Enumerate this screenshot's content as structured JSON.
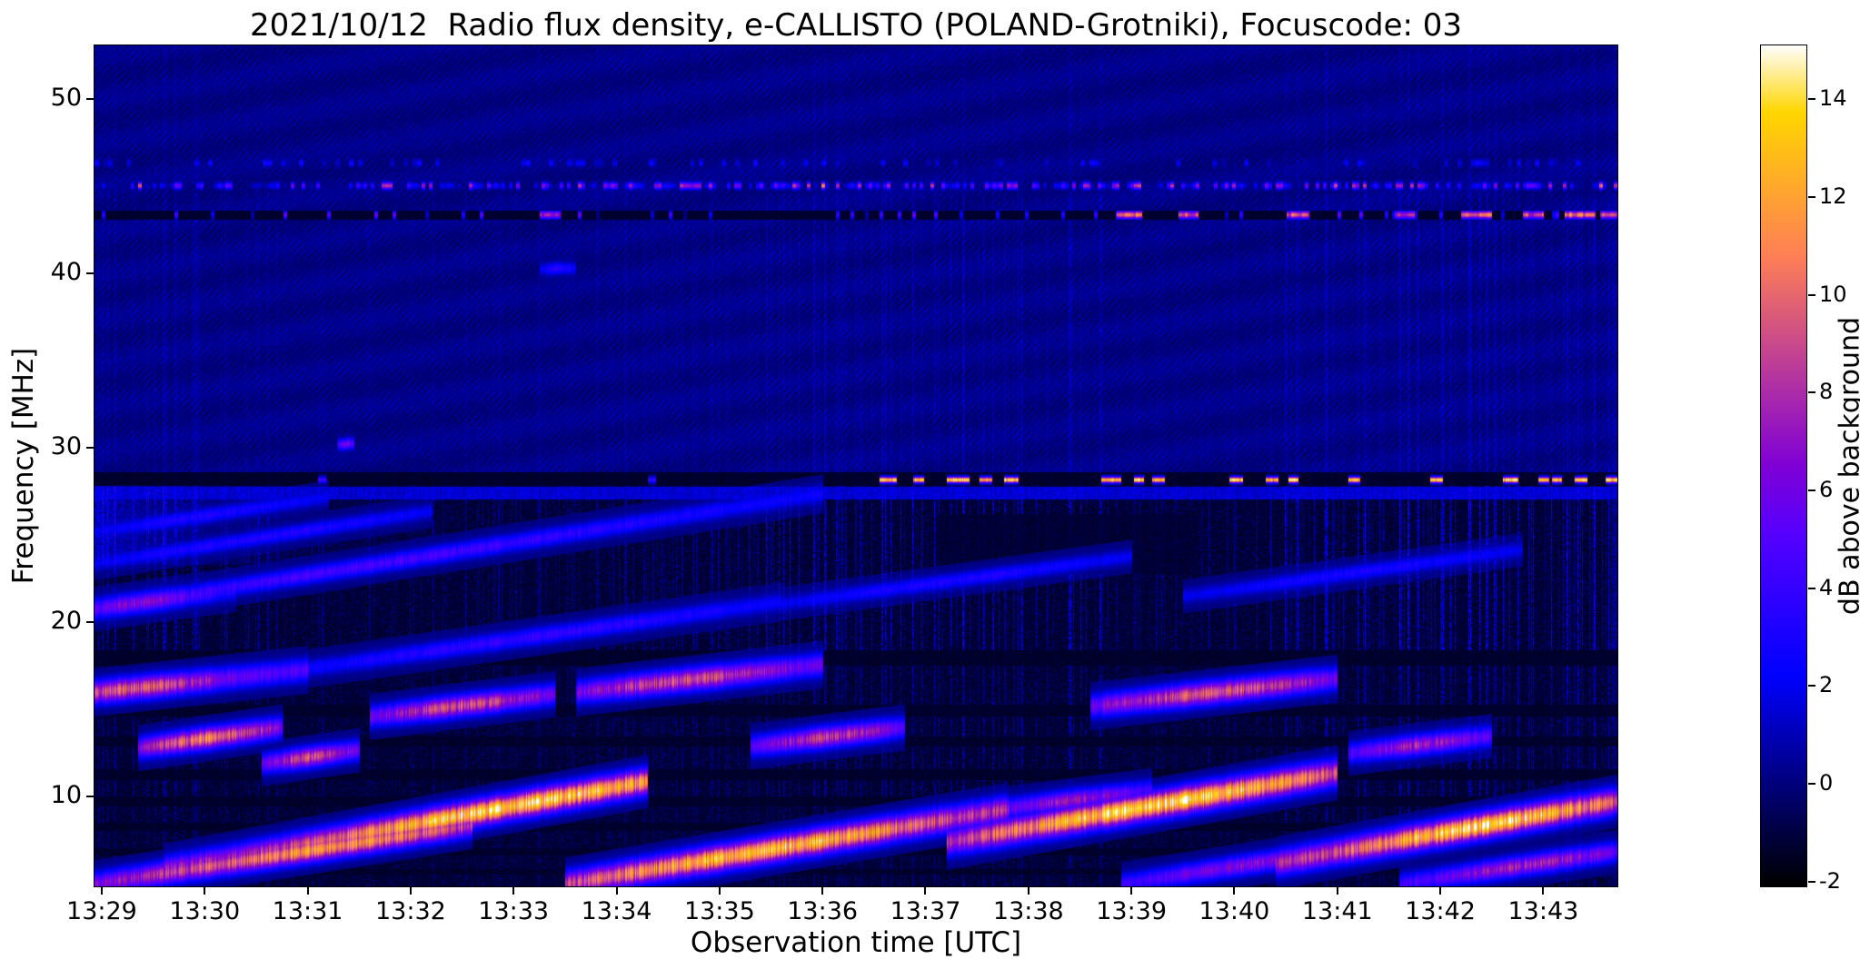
{
  "chart_data": {
    "type": "heatmap",
    "title": "2021/10/12  Radio flux density, e-CALLISTO (POLAND-Grotniki), Focuscode: 03",
    "xlabel": "Observation time [UTC]",
    "ylabel": "Frequency [MHz]",
    "colorbar_label": "dB above background",
    "x_ticks": [
      "13:29",
      "13:30",
      "13:31",
      "13:32",
      "13:33",
      "13:34",
      "13:35",
      "13:36",
      "13:37",
      "13:38",
      "13:39",
      "13:40",
      "13:41",
      "13:42",
      "13:43"
    ],
    "y_ticks": [
      10,
      20,
      30,
      40,
      50
    ],
    "y_range_mhz": [
      4.85,
      53.1
    ],
    "x_range_minutes": [
      -0.07,
      14.72
    ],
    "colorbar_ticks": [
      14,
      12,
      10,
      8,
      6,
      4,
      2,
      0,
      -2
    ],
    "colorbar_range": [
      -2.1,
      15.1
    ],
    "colormap": "gnuplot2",
    "grid": false,
    "features": {
      "background_db_upper": 0.15,
      "background_db_lower": -1.15,
      "dark_bands": [
        [
          17.5,
          18.4
        ],
        [
          14.6,
          15.25
        ],
        [
          12.85,
          13.45
        ],
        [
          10.95,
          11.55
        ],
        [
          9.45,
          10.0
        ],
        [
          8.05,
          8.5
        ],
        [
          6.6,
          7.05
        ],
        [
          5.55,
          5.85
        ]
      ],
      "dark_zone_t": [
        8.1,
        10.6
      ],
      "dark_zone_f": [
        22.8,
        26.2
      ],
      "rfi_rows": {
        "speckle_mhz": 45.05,
        "dark_mhz": 43.38,
        "faint_mhz": 46.35,
        "cb_band": [
          27.85,
          28.6
        ],
        "cb_dash_mhz": 28.17,
        "blue_band": [
          27.05,
          27.8
        ]
      },
      "rfi_43_segments": [
        [
          4.25,
          4.45,
          8
        ],
        [
          9.85,
          10.1,
          10
        ],
        [
          10.45,
          10.65,
          9
        ],
        [
          11.5,
          11.72,
          9.5
        ],
        [
          12.55,
          12.75,
          8.5
        ],
        [
          13.2,
          13.5,
          10
        ],
        [
          13.8,
          14.0,
          9
        ],
        [
          14.2,
          14.5,
          10.5
        ],
        [
          14.55,
          14.72,
          9.5
        ]
      ],
      "cb_dashes": [
        [
          2.1,
          2.18,
          4.5
        ],
        [
          5.3,
          5.38,
          4.0
        ],
        [
          7.55,
          7.72,
          14
        ],
        [
          7.88,
          7.98,
          13
        ],
        [
          8.2,
          8.42,
          14.5
        ],
        [
          8.52,
          8.64,
          12.5
        ],
        [
          8.76,
          8.9,
          14
        ],
        [
          9.7,
          9.9,
          13.5
        ],
        [
          10.02,
          10.12,
          14.5
        ],
        [
          10.2,
          10.32,
          12.5
        ],
        [
          10.95,
          11.08,
          14
        ],
        [
          11.3,
          11.42,
          13
        ],
        [
          11.52,
          11.62,
          14.5
        ],
        [
          12.1,
          12.22,
          13
        ],
        [
          12.9,
          13.02,
          14
        ],
        [
          13.6,
          13.75,
          14.5
        ],
        [
          13.95,
          14.05,
          13
        ],
        [
          14.08,
          14.18,
          14.5
        ],
        [
          14.3,
          14.42,
          13.5
        ],
        [
          14.6,
          14.72,
          14
        ]
      ],
      "streaks": [
        {
          "t0": -0.07,
          "f0": 20.8,
          "t1": 7.0,
          "f1": 27.4,
          "peak": 4.5,
          "w": 0.35,
          "ep": 0.35
        },
        {
          "t0": -0.07,
          "f0": 20.8,
          "t1": 1.3,
          "f1": 21.9,
          "peak": 6.5,
          "w": 0.4,
          "ep": 0.3
        },
        {
          "t0": -0.07,
          "f0": 23.4,
          "t1": 3.2,
          "f1": 26.4,
          "peak": 3.4,
          "w": 0.3,
          "ep": 0.5
        },
        {
          "t0": -0.07,
          "f0": 25.2,
          "t1": 2.2,
          "f1": 27.2,
          "peak": 3.2,
          "w": 0.3,
          "ep": 0.5
        },
        {
          "t0": 1.8,
          "f0": 17.2,
          "t1": 6.6,
          "f1": 21.2,
          "peak": 3.8,
          "w": 0.35,
          "ep": 0.5
        },
        {
          "t0": 6.5,
          "f0": 21.0,
          "t1": 10.0,
          "f1": 23.8,
          "peak": 3.2,
          "w": 0.3,
          "ep": 0.5
        },
        {
          "t0": 10.5,
          "f0": 21.5,
          "t1": 13.8,
          "f1": 24.2,
          "peak": 3.0,
          "w": 0.3,
          "ep": 0.5
        },
        {
          "t0": -0.07,
          "f0": 16.0,
          "t1": 2.0,
          "f1": 17.3,
          "peak": 9.5,
          "w": 0.45,
          "ep": 0.15
        },
        {
          "t0": 2.6,
          "f0": 14.6,
          "t1": 4.4,
          "f1": 15.9,
          "peak": 9.0,
          "w": 0.42,
          "ep": 0.5
        },
        {
          "t0": 4.6,
          "f0": 16.0,
          "t1": 7.0,
          "f1": 17.6,
          "peak": 9.0,
          "w": 0.45,
          "ep": 0.45
        },
        {
          "t0": 9.6,
          "f0": 15.2,
          "t1": 12.0,
          "f1": 16.8,
          "peak": 9.5,
          "w": 0.45,
          "ep": 0.5
        },
        {
          "t0": 0.35,
          "f0": 12.8,
          "t1": 1.75,
          "f1": 14.0,
          "peak": 10.5,
          "w": 0.42,
          "ep": 0.5
        },
        {
          "t0": 1.55,
          "f0": 11.9,
          "t1": 2.5,
          "f1": 12.7,
          "peak": 9.0,
          "w": 0.4,
          "ep": 0.5
        },
        {
          "t0": 6.3,
          "f0": 12.9,
          "t1": 7.8,
          "f1": 14.0,
          "peak": 8.5,
          "w": 0.42,
          "ep": 0.5
        },
        {
          "t0": 12.1,
          "f0": 12.5,
          "t1": 13.5,
          "f1": 13.5,
          "peak": 7.5,
          "w": 0.4,
          "ep": 0.5
        },
        {
          "t0": 0.6,
          "f0": 5.8,
          "t1": 5.3,
          "f1": 10.9,
          "peak": 13.5,
          "w": 0.5,
          "ep": 0.72
        },
        {
          "t0": -0.07,
          "f0": 5.0,
          "t1": 3.6,
          "f1": 8.4,
          "peak": 11.5,
          "w": 0.45,
          "ep": 0.6
        },
        {
          "t0": 4.5,
          "f0": 5.0,
          "t1": 8.8,
          "f1": 9.3,
          "peak": 13.0,
          "w": 0.5,
          "ep": 0.45
        },
        {
          "t0": 8.6,
          "f0": 9.2,
          "t1": 10.2,
          "f1": 10.4,
          "peak": 7.0,
          "w": 0.4,
          "ep": 0.5
        },
        {
          "t0": 8.2,
          "f0": 7.4,
          "t1": 12.0,
          "f1": 11.4,
          "peak": 14.0,
          "w": 0.52,
          "ep": 0.55
        },
        {
          "t0": 9.9,
          "f0": 5.0,
          "t1": 12.4,
          "f1": 7.3,
          "peak": 6.5,
          "w": 0.4,
          "ep": 0.5
        },
        {
          "t0": 11.4,
          "f0": 6.2,
          "t1": 14.75,
          "f1": 9.8,
          "peak": 13.5,
          "w": 0.5,
          "ep": 0.6
        },
        {
          "t0": 12.6,
          "f0": 5.0,
          "t1": 14.75,
          "f1": 6.9,
          "peak": 7.5,
          "w": 0.4,
          "ep": 0.6
        },
        {
          "t0": 2.28,
          "f0": 30.2,
          "t1": 2.45,
          "f1": 30.3,
          "peak": 6.5,
          "w": 0.22,
          "ep": 0.5
        },
        {
          "t0": 4.25,
          "f0": 40.28,
          "t1": 4.6,
          "f1": 40.35,
          "peak": 3.4,
          "w": 0.25,
          "ep": 0.5
        }
      ]
    }
  }
}
